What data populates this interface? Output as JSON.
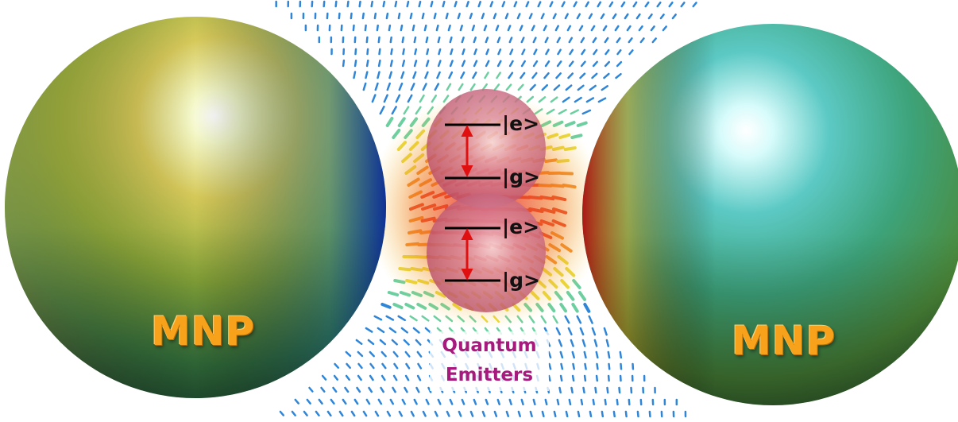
{
  "particles": {
    "left_label": "MNP",
    "right_label": "MNP"
  },
  "emitters": {
    "caption_line1": "Quantum",
    "caption_line2": "Emitters",
    "upper": {
      "excited_label": "|e>",
      "ground_label": "|g>"
    },
    "lower": {
      "excited_label": "|e>",
      "ground_label": "|g>"
    }
  },
  "colors": {
    "mnp_label": "#f7a21a",
    "caption_text": "#a8197e",
    "transition_arrow": "#e01010",
    "emitter_sphere": "#c8506a"
  }
}
